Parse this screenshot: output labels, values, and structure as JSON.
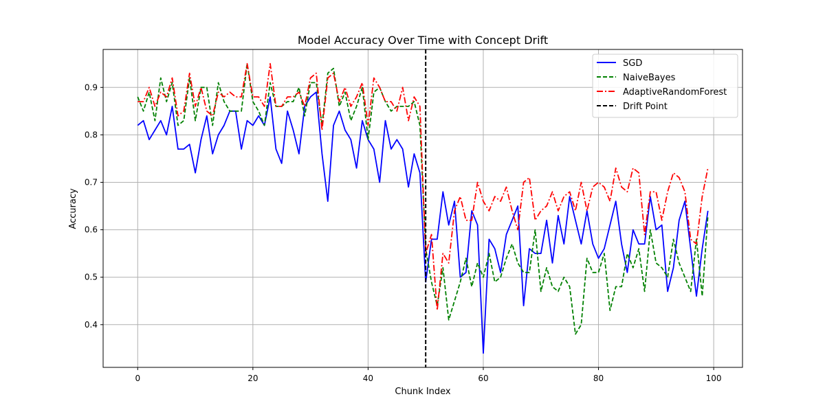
{
  "chart_data": {
    "type": "line",
    "title": "Model Accuracy Over Time with Concept Drift",
    "xlabel": "Chunk Index",
    "ylabel": "Accuracy",
    "xlim": [
      -6,
      105
    ],
    "ylim": [
      0.31,
      0.98
    ],
    "xticks": [
      0,
      20,
      40,
      60,
      80,
      100
    ],
    "yticks": [
      0.4,
      0.5,
      0.6,
      0.7,
      0.8,
      0.9
    ],
    "xtick_labels": [
      "0",
      "20",
      "40",
      "60",
      "80",
      "100"
    ],
    "ytick_labels": [
      "0.4",
      "0.5",
      "0.6",
      "0.7",
      "0.8",
      "0.9"
    ],
    "grid": true,
    "legend_position": "top-right",
    "drift_point": {
      "name": "Drift Point",
      "x": 50,
      "color": "#000000",
      "style": "dashed"
    },
    "x": [
      0,
      1,
      2,
      3,
      4,
      5,
      6,
      7,
      8,
      9,
      10,
      11,
      12,
      13,
      14,
      15,
      16,
      17,
      18,
      19,
      20,
      21,
      22,
      23,
      24,
      25,
      26,
      27,
      28,
      29,
      30,
      31,
      32,
      33,
      34,
      35,
      36,
      37,
      38,
      39,
      40,
      41,
      42,
      43,
      44,
      45,
      46,
      47,
      48,
      49,
      50,
      51,
      52,
      53,
      54,
      55,
      56,
      57,
      58,
      59,
      60,
      61,
      62,
      63,
      64,
      65,
      66,
      67,
      68,
      69,
      70,
      71,
      72,
      73,
      74,
      75,
      76,
      77,
      78,
      79,
      80,
      81,
      82,
      83,
      84,
      85,
      86,
      87,
      88,
      89,
      90,
      91,
      92,
      93,
      94,
      95,
      96,
      97,
      98,
      99
    ],
    "series": [
      {
        "name": "SGD",
        "color": "#0000ff",
        "style": "solid",
        "values": [
          0.82,
          0.83,
          0.79,
          0.81,
          0.83,
          0.8,
          0.86,
          0.77,
          0.77,
          0.78,
          0.72,
          0.79,
          0.84,
          0.76,
          0.8,
          0.82,
          0.85,
          0.85,
          0.77,
          0.83,
          0.82,
          0.84,
          0.82,
          0.88,
          0.77,
          0.74,
          0.85,
          0.81,
          0.76,
          0.86,
          0.88,
          0.89,
          0.76,
          0.66,
          0.82,
          0.85,
          0.81,
          0.79,
          0.73,
          0.83,
          0.79,
          0.77,
          0.7,
          0.83,
          0.77,
          0.79,
          0.77,
          0.69,
          0.76,
          0.72,
          0.49,
          0.58,
          0.58,
          0.68,
          0.61,
          0.66,
          0.5,
          0.51,
          0.64,
          0.61,
          0.34,
          0.58,
          0.56,
          0.51,
          0.59,
          0.62,
          0.65,
          0.44,
          0.56,
          0.55,
          0.55,
          0.62,
          0.53,
          0.63,
          0.57,
          0.67,
          0.62,
          0.57,
          0.64,
          0.57,
          0.54,
          0.56,
          0.61,
          0.66,
          0.57,
          0.51,
          0.6,
          0.57,
          0.57,
          0.67,
          0.6,
          0.61,
          0.47,
          0.52,
          0.62,
          0.66,
          0.56,
          0.46,
          0.56,
          0.64
        ]
      },
      {
        "name": "NaiveBayes",
        "color": "#008000",
        "style": "dashed",
        "values": [
          0.88,
          0.85,
          0.89,
          0.83,
          0.92,
          0.87,
          0.91,
          0.82,
          0.83,
          0.92,
          0.83,
          0.9,
          0.9,
          0.82,
          0.91,
          0.87,
          0.85,
          0.85,
          0.85,
          0.95,
          0.87,
          0.85,
          0.82,
          0.91,
          0.86,
          0.86,
          0.87,
          0.87,
          0.9,
          0.84,
          0.91,
          0.91,
          0.82,
          0.93,
          0.94,
          0.86,
          0.89,
          0.83,
          0.86,
          0.9,
          0.79,
          0.89,
          0.9,
          0.87,
          0.85,
          0.86,
          0.86,
          0.86,
          0.87,
          0.82,
          0.56,
          0.49,
          0.44,
          0.52,
          0.41,
          0.45,
          0.49,
          0.54,
          0.48,
          0.53,
          0.5,
          0.55,
          0.49,
          0.5,
          0.54,
          0.57,
          0.53,
          0.51,
          0.51,
          0.6,
          0.47,
          0.52,
          0.48,
          0.47,
          0.5,
          0.48,
          0.38,
          0.4,
          0.54,
          0.51,
          0.51,
          0.55,
          0.43,
          0.48,
          0.48,
          0.55,
          0.52,
          0.56,
          0.47,
          0.6,
          0.53,
          0.52,
          0.5,
          0.58,
          0.53,
          0.5,
          0.47,
          0.58,
          0.46,
          0.63
        ]
      },
      {
        "name": "AdaptiveRandomForest",
        "color": "#ff0000",
        "style": "dashdot",
        "values": [
          0.87,
          0.87,
          0.9,
          0.86,
          0.89,
          0.88,
          0.92,
          0.84,
          0.85,
          0.93,
          0.86,
          0.9,
          0.85,
          0.84,
          0.89,
          0.88,
          0.89,
          0.88,
          0.88,
          0.95,
          0.88,
          0.88,
          0.86,
          0.95,
          0.86,
          0.86,
          0.88,
          0.88,
          0.89,
          0.86,
          0.92,
          0.93,
          0.81,
          0.92,
          0.93,
          0.87,
          0.9,
          0.86,
          0.88,
          0.91,
          0.82,
          0.92,
          0.9,
          0.87,
          0.87,
          0.85,
          0.9,
          0.83,
          0.88,
          0.86,
          0.55,
          0.59,
          0.43,
          0.55,
          0.53,
          0.64,
          0.67,
          0.62,
          0.62,
          0.7,
          0.66,
          0.64,
          0.67,
          0.66,
          0.69,
          0.64,
          0.6,
          0.7,
          0.71,
          0.62,
          0.64,
          0.65,
          0.68,
          0.64,
          0.67,
          0.68,
          0.64,
          0.7,
          0.64,
          0.69,
          0.7,
          0.69,
          0.66,
          0.73,
          0.69,
          0.68,
          0.73,
          0.72,
          0.59,
          0.68,
          0.68,
          0.62,
          0.68,
          0.72,
          0.71,
          0.68,
          0.58,
          0.57,
          0.67,
          0.73
        ]
      }
    ]
  }
}
